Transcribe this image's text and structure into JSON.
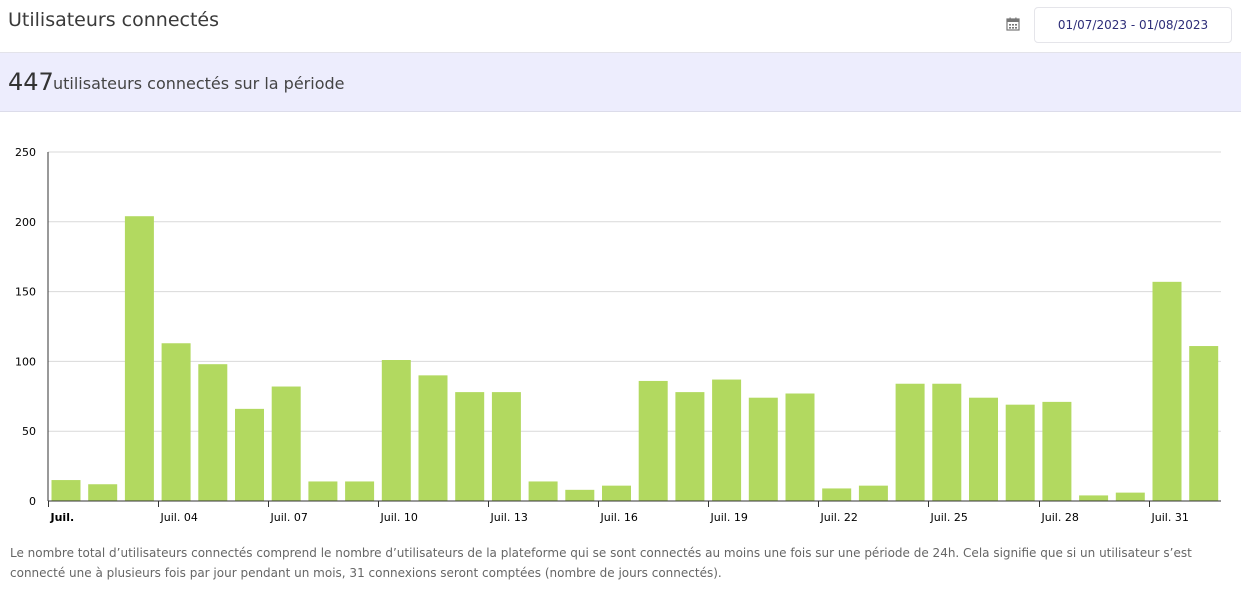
{
  "header": {
    "title": "Utilisateurs connectés",
    "calendar_icon": "calendar-icon",
    "date_range": "01/07/2023 - 01/08/2023"
  },
  "summary": {
    "count": "447",
    "label": "utilisateurs connectés sur la période"
  },
  "note": "Le nombre total d’utilisateurs connectés comprend le nombre d’utilisateurs de la plateforme qui se sont connectés au moins une fois sur une période de 24h. Cela signifie que si un utilisateur s’est connecté une à plusieurs fois par jour pendant un mois, 31 connexions seront comptées (nombre de jours connectés).",
  "chart_data": {
    "type": "bar",
    "title": "",
    "xlabel": "",
    "ylabel": "",
    "ylim": [
      0,
      250
    ],
    "yticks": [
      0,
      50,
      100,
      150,
      200,
      250
    ],
    "grid": true,
    "bar_color": "#b2d960",
    "categories": [
      "01/07",
      "02/07",
      "03/07",
      "04/07",
      "05/07",
      "06/07",
      "07/07",
      "08/07",
      "09/07",
      "10/07",
      "11/07",
      "12/07",
      "13/07",
      "14/07",
      "15/07",
      "16/07",
      "17/07",
      "18/07",
      "19/07",
      "20/07",
      "21/07",
      "22/07",
      "23/07",
      "24/07",
      "25/07",
      "26/07",
      "27/07",
      "28/07",
      "29/07",
      "30/07",
      "31/07",
      "01/08"
    ],
    "values": [
      15,
      12,
      204,
      113,
      98,
      66,
      82,
      14,
      14,
      101,
      90,
      78,
      78,
      14,
      8,
      11,
      86,
      78,
      87,
      74,
      77,
      9,
      11,
      84,
      84,
      74,
      69,
      71,
      4,
      6,
      157,
      111
    ],
    "xtick_labels": [
      {
        "index": 0,
        "label": "Juil.",
        "bold": true
      },
      {
        "index": 3,
        "label": "Juil. 04",
        "bold": false
      },
      {
        "index": 6,
        "label": "Juil. 07",
        "bold": false
      },
      {
        "index": 9,
        "label": "Juil. 10",
        "bold": false
      },
      {
        "index": 12,
        "label": "Juil. 13",
        "bold": false
      },
      {
        "index": 15,
        "label": "Juil. 16",
        "bold": false
      },
      {
        "index": 18,
        "label": "Juil. 19",
        "bold": false
      },
      {
        "index": 21,
        "label": "Juil. 22",
        "bold": false
      },
      {
        "index": 24,
        "label": "Juil. 25",
        "bold": false
      },
      {
        "index": 27,
        "label": "Juil. 28",
        "bold": false
      },
      {
        "index": 30,
        "label": "Juil. 31",
        "bold": false
      }
    ]
  }
}
